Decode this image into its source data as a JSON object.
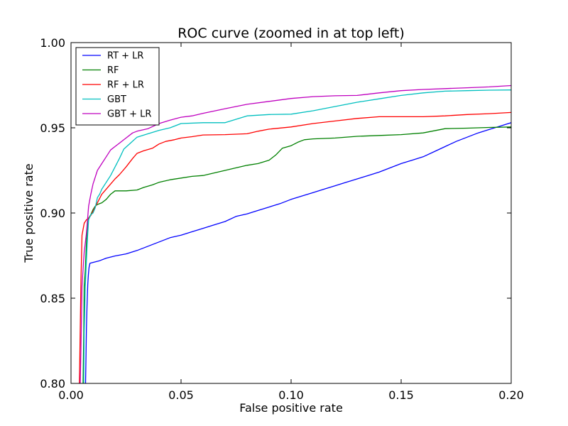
{
  "chart_data": {
    "type": "line",
    "title": "ROC curve (zoomed in at top left)",
    "xlabel": "False positive rate",
    "ylabel": "True positive rate",
    "xlim": [
      0.0,
      0.2
    ],
    "ylim": [
      0.8,
      1.0
    ],
    "x_ticks": [
      0.0,
      0.05,
      0.1,
      0.15,
      0.2
    ],
    "x_tick_labels": [
      "0.00",
      "0.05",
      "0.10",
      "0.15",
      "0.20"
    ],
    "y_ticks": [
      0.8,
      0.85,
      0.9,
      0.95,
      1.0
    ],
    "y_tick_labels": [
      "0.80",
      "0.85",
      "0.90",
      "0.95",
      "1.00"
    ],
    "grid": false,
    "legend_position": "top-left",
    "series": [
      {
        "name": "RT + LR",
        "color": "#0000ff",
        "points": [
          [
            0.0066,
            0.8
          ],
          [
            0.0068,
            0.815
          ],
          [
            0.007,
            0.832
          ],
          [
            0.0073,
            0.846
          ],
          [
            0.0076,
            0.858
          ],
          [
            0.0079,
            0.864
          ],
          [
            0.0082,
            0.868
          ],
          [
            0.0086,
            0.8705
          ],
          [
            0.01,
            0.871
          ],
          [
            0.013,
            0.872
          ],
          [
            0.016,
            0.8735
          ],
          [
            0.02,
            0.8748
          ],
          [
            0.025,
            0.876
          ],
          [
            0.03,
            0.878
          ],
          [
            0.035,
            0.8805
          ],
          [
            0.04,
            0.883
          ],
          [
            0.045,
            0.8855
          ],
          [
            0.05,
            0.887
          ],
          [
            0.055,
            0.889
          ],
          [
            0.06,
            0.891
          ],
          [
            0.065,
            0.893
          ],
          [
            0.07,
            0.895
          ],
          [
            0.075,
            0.898
          ],
          [
            0.08,
            0.8995
          ],
          [
            0.085,
            0.9015
          ],
          [
            0.09,
            0.9035
          ],
          [
            0.095,
            0.9055
          ],
          [
            0.1,
            0.908
          ],
          [
            0.105,
            0.91
          ],
          [
            0.11,
            0.912
          ],
          [
            0.115,
            0.914
          ],
          [
            0.12,
            0.916
          ],
          [
            0.125,
            0.918
          ],
          [
            0.13,
            0.92
          ],
          [
            0.135,
            0.922
          ],
          [
            0.14,
            0.924
          ],
          [
            0.145,
            0.9265
          ],
          [
            0.15,
            0.929
          ],
          [
            0.155,
            0.931
          ],
          [
            0.16,
            0.933
          ],
          [
            0.165,
            0.936
          ],
          [
            0.17,
            0.939
          ],
          [
            0.175,
            0.942
          ],
          [
            0.18,
            0.9445
          ],
          [
            0.185,
            0.947
          ],
          [
            0.19,
            0.949
          ],
          [
            0.195,
            0.951
          ],
          [
            0.2,
            0.953
          ]
        ]
      },
      {
        "name": "RF",
        "color": "#008000",
        "points": [
          [
            0.0055,
            0.8
          ],
          [
            0.0058,
            0.83
          ],
          [
            0.006,
            0.857
          ],
          [
            0.0065,
            0.866
          ],
          [
            0.007,
            0.882
          ],
          [
            0.0075,
            0.893
          ],
          [
            0.008,
            0.897
          ],
          [
            0.009,
            0.899
          ],
          [
            0.01,
            0.902
          ],
          [
            0.011,
            0.904
          ],
          [
            0.012,
            0.905
          ],
          [
            0.014,
            0.906
          ],
          [
            0.016,
            0.908
          ],
          [
            0.018,
            0.911
          ],
          [
            0.02,
            0.913
          ],
          [
            0.025,
            0.913
          ],
          [
            0.03,
            0.9135
          ],
          [
            0.033,
            0.915
          ],
          [
            0.037,
            0.9165
          ],
          [
            0.04,
            0.918
          ],
          [
            0.045,
            0.9195
          ],
          [
            0.05,
            0.9205
          ],
          [
            0.055,
            0.9215
          ],
          [
            0.06,
            0.922
          ],
          [
            0.065,
            0.9235
          ],
          [
            0.07,
            0.925
          ],
          [
            0.075,
            0.9265
          ],
          [
            0.08,
            0.928
          ],
          [
            0.085,
            0.929
          ],
          [
            0.09,
            0.931
          ],
          [
            0.093,
            0.934
          ],
          [
            0.096,
            0.938
          ],
          [
            0.1,
            0.9395
          ],
          [
            0.103,
            0.9415
          ],
          [
            0.106,
            0.943
          ],
          [
            0.11,
            0.9435
          ],
          [
            0.12,
            0.944
          ],
          [
            0.13,
            0.945
          ],
          [
            0.14,
            0.9455
          ],
          [
            0.15,
            0.946
          ],
          [
            0.16,
            0.947
          ],
          [
            0.17,
            0.9495
          ],
          [
            0.18,
            0.9498
          ],
          [
            0.19,
            0.9502
          ],
          [
            0.2,
            0.9505
          ]
        ]
      },
      {
        "name": "RF + LR",
        "color": "#ff0000",
        "points": [
          [
            0.0038,
            0.8
          ],
          [
            0.004,
            0.815
          ],
          [
            0.0045,
            0.86
          ],
          [
            0.005,
            0.887
          ],
          [
            0.006,
            0.894
          ],
          [
            0.007,
            0.896
          ],
          [
            0.008,
            0.897
          ],
          [
            0.009,
            0.8985
          ],
          [
            0.01,
            0.901
          ],
          [
            0.012,
            0.906
          ],
          [
            0.014,
            0.911
          ],
          [
            0.016,
            0.914
          ],
          [
            0.018,
            0.917
          ],
          [
            0.02,
            0.92
          ],
          [
            0.022,
            0.9225
          ],
          [
            0.025,
            0.927
          ],
          [
            0.028,
            0.932
          ],
          [
            0.03,
            0.935
          ],
          [
            0.033,
            0.9365
          ],
          [
            0.037,
            0.938
          ],
          [
            0.04,
            0.9405
          ],
          [
            0.043,
            0.942
          ],
          [
            0.047,
            0.943
          ],
          [
            0.05,
            0.944
          ],
          [
            0.055,
            0.9448
          ],
          [
            0.06,
            0.9458
          ],
          [
            0.07,
            0.946
          ],
          [
            0.08,
            0.9465
          ],
          [
            0.085,
            0.948
          ],
          [
            0.09,
            0.9492
          ],
          [
            0.1,
            0.9505
          ],
          [
            0.11,
            0.9525
          ],
          [
            0.12,
            0.954
          ],
          [
            0.13,
            0.9555
          ],
          [
            0.14,
            0.9565
          ],
          [
            0.15,
            0.9565
          ],
          [
            0.16,
            0.9565
          ],
          [
            0.17,
            0.957
          ],
          [
            0.18,
            0.9578
          ],
          [
            0.19,
            0.9583
          ],
          [
            0.2,
            0.959
          ]
        ]
      },
      {
        "name": "GBT",
        "color": "#00bfbf",
        "points": [
          [
            0.0058,
            0.8
          ],
          [
            0.006,
            0.83
          ],
          [
            0.0065,
            0.857
          ],
          [
            0.007,
            0.872
          ],
          [
            0.0075,
            0.886
          ],
          [
            0.008,
            0.896
          ],
          [
            0.009,
            0.899
          ],
          [
            0.01,
            0.9
          ],
          [
            0.011,
            0.903
          ],
          [
            0.012,
            0.909
          ],
          [
            0.013,
            0.911
          ],
          [
            0.014,
            0.914
          ],
          [
            0.016,
            0.918
          ],
          [
            0.018,
            0.922
          ],
          [
            0.02,
            0.927
          ],
          [
            0.022,
            0.932
          ],
          [
            0.024,
            0.9375
          ],
          [
            0.027,
            0.941
          ],
          [
            0.03,
            0.9445
          ],
          [
            0.035,
            0.9465
          ],
          [
            0.04,
            0.9485
          ],
          [
            0.045,
            0.95
          ],
          [
            0.05,
            0.9525
          ],
          [
            0.06,
            0.953
          ],
          [
            0.07,
            0.953
          ],
          [
            0.075,
            0.955
          ],
          [
            0.08,
            0.957
          ],
          [
            0.09,
            0.9578
          ],
          [
            0.1,
            0.958
          ],
          [
            0.11,
            0.96
          ],
          [
            0.12,
            0.9625
          ],
          [
            0.13,
            0.965
          ],
          [
            0.14,
            0.967
          ],
          [
            0.15,
            0.969
          ],
          [
            0.16,
            0.9705
          ],
          [
            0.17,
            0.9715
          ],
          [
            0.18,
            0.9718
          ],
          [
            0.19,
            0.9721
          ],
          [
            0.2,
            0.9722
          ]
        ]
      },
      {
        "name": "GBT + LR",
        "color": "#bf00bf",
        "points": [
          [
            0.0042,
            0.8
          ],
          [
            0.0045,
            0.82
          ],
          [
            0.005,
            0.857
          ],
          [
            0.0055,
            0.867
          ],
          [
            0.006,
            0.877
          ],
          [
            0.007,
            0.888
          ],
          [
            0.008,
            0.904
          ],
          [
            0.009,
            0.911
          ],
          [
            0.01,
            0.917
          ],
          [
            0.012,
            0.925
          ],
          [
            0.014,
            0.929
          ],
          [
            0.016,
            0.933
          ],
          [
            0.018,
            0.937
          ],
          [
            0.02,
            0.939
          ],
          [
            0.022,
            0.941
          ],
          [
            0.025,
            0.944
          ],
          [
            0.028,
            0.947
          ],
          [
            0.03,
            0.948
          ],
          [
            0.035,
            0.9495
          ],
          [
            0.04,
            0.9525
          ],
          [
            0.045,
            0.9545
          ],
          [
            0.05,
            0.9562
          ],
          [
            0.055,
            0.957
          ],
          [
            0.06,
            0.9585
          ],
          [
            0.07,
            0.9612
          ],
          [
            0.08,
            0.9638
          ],
          [
            0.09,
            0.9655
          ],
          [
            0.1,
            0.9672
          ],
          [
            0.11,
            0.9683
          ],
          [
            0.12,
            0.9688
          ],
          [
            0.13,
            0.969
          ],
          [
            0.14,
            0.9705
          ],
          [
            0.15,
            0.9718
          ],
          [
            0.16,
            0.9725
          ],
          [
            0.17,
            0.973
          ],
          [
            0.18,
            0.9735
          ],
          [
            0.19,
            0.974
          ],
          [
            0.2,
            0.9748
          ]
        ]
      }
    ]
  }
}
